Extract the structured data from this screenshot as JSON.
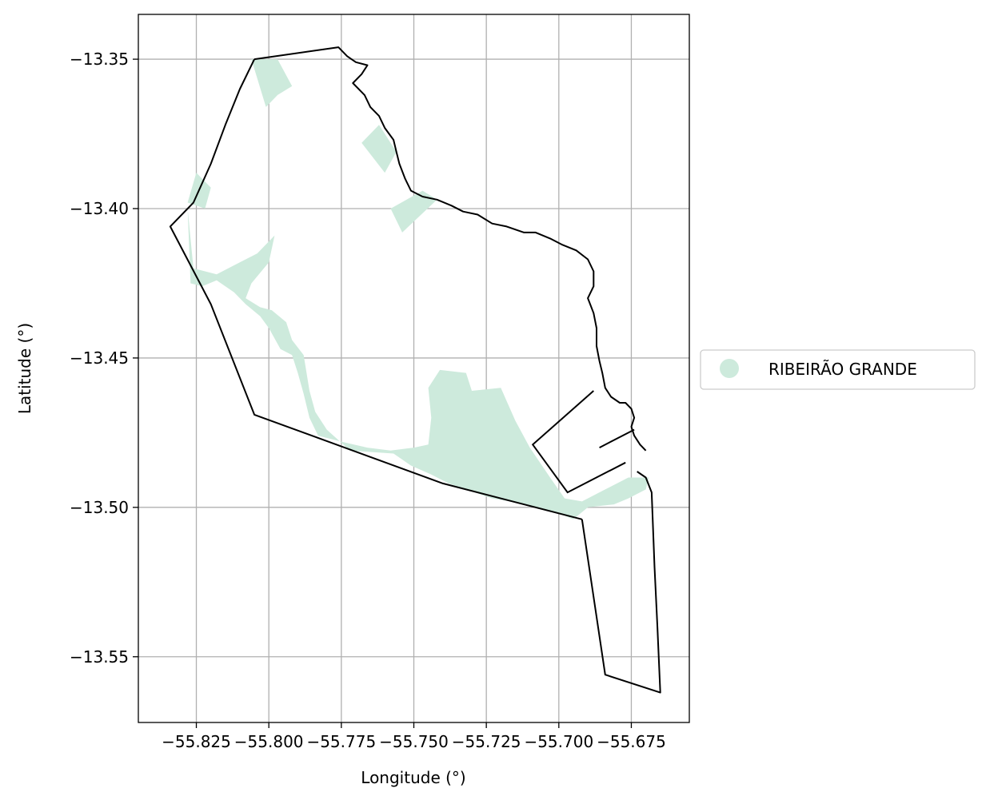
{
  "chart_data": {
    "type": "map",
    "xlabel": "Longitude (°)",
    "ylabel": "Latitude (°)",
    "xlim": [
      -55.845,
      -55.655
    ],
    "ylim": [
      -13.572,
      -13.335
    ],
    "grid": true,
    "legend_placement": "right",
    "x_ticks": [
      -55.825,
      -55.8,
      -55.775,
      -55.75,
      -55.725,
      -55.7,
      -55.675
    ],
    "x_tick_labels": [
      "−55.825",
      "−55.800",
      "−55.775",
      "−55.750",
      "−55.725",
      "−55.700",
      "−55.675"
    ],
    "y_ticks": [
      -13.35,
      -13.4,
      -13.45,
      -13.5,
      -13.55
    ],
    "y_tick_labels": [
      "−13.35",
      "−13.40",
      "−13.45",
      "−13.50",
      "−13.55"
    ],
    "legend": [
      {
        "label": "RIBEIRÃO GRANDE",
        "color": "#cdeadc"
      }
    ],
    "colors": {
      "fill": "#cdeadc",
      "boundary": "#000000",
      "grid": "#b0b0b0"
    },
    "boundary_main": [
      [
        -55.805,
        -13.35
      ],
      [
        -55.776,
        -13.346
      ],
      [
        -55.773,
        -13.349
      ],
      [
        -55.77,
        -13.351
      ],
      [
        -55.766,
        -13.352
      ],
      [
        -55.768,
        -13.355
      ],
      [
        -55.771,
        -13.358
      ],
      [
        -55.767,
        -13.362
      ],
      [
        -55.765,
        -13.366
      ],
      [
        -55.762,
        -13.369
      ],
      [
        -55.76,
        -13.373
      ],
      [
        -55.757,
        -13.377
      ],
      [
        -55.756,
        -13.381
      ],
      [
        -55.755,
        -13.385
      ],
      [
        -55.753,
        -13.39
      ],
      [
        -55.751,
        -13.394
      ],
      [
        -55.747,
        -13.396
      ],
      [
        -55.742,
        -13.397
      ],
      [
        -55.737,
        -13.399
      ],
      [
        -55.733,
        -13.401
      ],
      [
        -55.728,
        -13.402
      ],
      [
        -55.723,
        -13.405
      ],
      [
        -55.718,
        -13.406
      ],
      [
        -55.712,
        -13.408
      ],
      [
        -55.708,
        -13.408
      ],
      [
        -55.703,
        -13.41
      ],
      [
        -55.699,
        -13.412
      ],
      [
        -55.694,
        -13.414
      ],
      [
        -55.69,
        -13.417
      ],
      [
        -55.688,
        -13.421
      ],
      [
        -55.688,
        -13.426
      ],
      [
        -55.69,
        -13.43
      ],
      [
        -55.688,
        -13.435
      ],
      [
        -55.687,
        -13.44
      ],
      [
        -55.687,
        -13.446
      ],
      [
        -55.686,
        -13.451
      ],
      [
        -55.685,
        -13.455
      ],
      [
        -55.684,
        -13.46
      ],
      [
        -55.682,
        -13.463
      ],
      [
        -55.679,
        -13.465
      ],
      [
        -55.677,
        -13.465
      ],
      [
        -55.675,
        -13.467
      ],
      [
        -55.674,
        -13.47
      ],
      [
        -55.675,
        -13.473
      ],
      [
        -55.674,
        -13.476
      ],
      [
        -55.672,
        -13.479
      ],
      [
        -55.67,
        -13.481
      ]
    ],
    "boundary_left": [
      [
        -55.805,
        -13.35
      ],
      [
        -55.81,
        -13.36
      ],
      [
        -55.815,
        -13.372
      ],
      [
        -55.82,
        -13.385
      ],
      [
        -55.826,
        -13.398
      ],
      [
        -55.834,
        -13.406
      ],
      [
        -55.82,
        -13.432
      ],
      [
        -55.805,
        -13.469
      ],
      [
        -55.74,
        -13.492
      ],
      [
        -55.692,
        -13.504
      ]
    ],
    "boundary_bottom": [
      [
        -55.692,
        -13.504
      ],
      [
        -55.684,
        -13.556
      ],
      [
        -55.665,
        -13.562
      ],
      [
        -55.666,
        -13.54
      ],
      [
        -55.667,
        -13.52
      ],
      [
        -55.668,
        -13.495
      ],
      [
        -55.67,
        -13.49
      ],
      [
        -55.673,
        -13.488
      ]
    ],
    "boundary_inset": [
      [
        -55.688,
        -13.461
      ],
      [
        -55.709,
        -13.479
      ],
      [
        -55.697,
        -13.495
      ],
      [
        -55.677,
        -13.485
      ]
    ],
    "boundary_inner_line": [
      [
        -55.686,
        -13.48
      ],
      [
        -55.674,
        -13.474
      ]
    ],
    "fill_polygons": [
      [
        [
          -55.806,
          -13.35
        ],
        [
          -55.797,
          -13.35
        ],
        [
          -55.792,
          -13.359
        ],
        [
          -55.797,
          -13.362
        ],
        [
          -55.801,
          -13.366
        ]
      ],
      [
        [
          -55.768,
          -13.378
        ],
        [
          -55.762,
          -13.372
        ],
        [
          -55.756,
          -13.381
        ],
        [
          -55.76,
          -13.388
        ]
      ],
      [
        [
          -55.758,
          -13.4
        ],
        [
          -55.747,
          -13.394
        ],
        [
          -55.742,
          -13.397
        ],
        [
          -55.754,
          -13.408
        ]
      ],
      [
        [
          -55.828,
          -13.398
        ],
        [
          -55.825,
          -13.388
        ],
        [
          -55.82,
          -13.393
        ],
        [
          -55.822,
          -13.4
        ]
      ],
      [
        [
          -55.828,
          -13.4
        ],
        [
          -55.826,
          -13.42
        ],
        [
          -55.818,
          -13.422
        ],
        [
          -55.81,
          -13.418
        ],
        [
          -55.804,
          -13.415
        ],
        [
          -55.798,
          -13.409
        ],
        [
          -55.8,
          -13.418
        ],
        [
          -55.806,
          -13.425
        ],
        [
          -55.808,
          -13.43
        ],
        [
          -55.803,
          -13.433
        ],
        [
          -55.799,
          -13.434
        ],
        [
          -55.794,
          -13.438
        ],
        [
          -55.792,
          -13.444
        ],
        [
          -55.788,
          -13.449
        ],
        [
          -55.786,
          -13.461
        ],
        [
          -55.784,
          -13.468
        ],
        [
          -55.78,
          -13.474
        ],
        [
          -55.772,
          -13.481
        ],
        [
          -55.757,
          -13.482
        ],
        [
          -55.751,
          -13.486
        ],
        [
          -55.744,
          -13.489
        ],
        [
          -55.738,
          -13.492
        ],
        [
          -55.723,
          -13.497
        ],
        [
          -55.711,
          -13.499
        ],
        [
          -55.7,
          -13.502
        ],
        [
          -55.695,
          -13.504
        ],
        [
          -55.69,
          -13.5
        ],
        [
          -55.681,
          -13.499
        ],
        [
          -55.676,
          -13.497
        ],
        [
          -55.67,
          -13.494
        ],
        [
          -55.669,
          -13.49
        ],
        [
          -55.676,
          -13.49
        ],
        [
          -55.684,
          -13.494
        ],
        [
          -55.692,
          -13.498
        ],
        [
          -55.698,
          -13.497
        ],
        [
          -55.703,
          -13.49
        ],
        [
          -55.71,
          -13.48
        ],
        [
          -55.715,
          -13.471
        ],
        [
          -55.72,
          -13.46
        ],
        [
          -55.73,
          -13.461
        ],
        [
          -55.732,
          -13.455
        ],
        [
          -55.741,
          -13.454
        ],
        [
          -55.745,
          -13.46
        ],
        [
          -55.744,
          -13.47
        ],
        [
          -55.745,
          -13.479
        ],
        [
          -55.75,
          -13.48
        ],
        [
          -55.758,
          -13.481
        ],
        [
          -55.766,
          -13.48
        ],
        [
          -55.775,
          -13.478
        ],
        [
          -55.783,
          -13.476
        ],
        [
          -55.786,
          -13.47
        ],
        [
          -55.788,
          -13.462
        ],
        [
          -55.79,
          -13.455
        ],
        [
          -55.792,
          -13.449
        ],
        [
          -55.796,
          -13.447
        ],
        [
          -55.8,
          -13.44
        ],
        [
          -55.803,
          -13.436
        ],
        [
          -55.808,
          -13.432
        ],
        [
          -55.812,
          -13.428
        ],
        [
          -55.818,
          -13.424
        ],
        [
          -55.823,
          -13.426
        ],
        [
          -55.827,
          -13.425
        ]
      ]
    ]
  }
}
